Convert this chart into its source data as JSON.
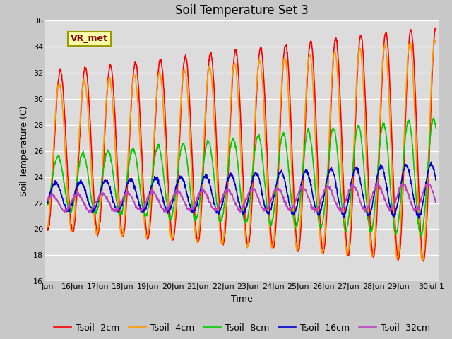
{
  "title": "Soil Temperature Set 3",
  "xlabel": "Time",
  "ylabel": "Soil Temperature (C)",
  "ylim": [
    16,
    36
  ],
  "background_color": "#c8c8c8",
  "plot_bg_color": "#dcdcdc",
  "series": [
    {
      "label": "Tsoil -2cm",
      "color": "#ff0000",
      "amp_start": 6.0,
      "amp_end": 9.0,
      "mean": 26.0,
      "phase": 0.0,
      "linewidth": 1.2
    },
    {
      "label": "Tsoil -4cm",
      "color": "#ff9900",
      "amp_start": 5.5,
      "amp_end": 8.5,
      "mean": 25.5,
      "phase": 0.25,
      "linewidth": 1.2
    },
    {
      "label": "Tsoil -8cm",
      "color": "#00cc00",
      "amp_start": 2.0,
      "amp_end": 4.5,
      "mean": 23.5,
      "phase": 0.6,
      "linewidth": 1.2
    },
    {
      "label": "Tsoil -16cm",
      "color": "#0000cc",
      "amp_start": 1.0,
      "amp_end": 2.0,
      "mean": 22.5,
      "phase": 1.2,
      "linewidth": 1.2
    },
    {
      "label": "Tsoil -32cm",
      "color": "#bb44bb",
      "amp_start": 0.6,
      "amp_end": 1.0,
      "mean": 22.0,
      "phase": 2.0,
      "linewidth": 1.2
    }
  ],
  "xtick_positions": [
    0,
    1,
    2,
    3,
    4,
    5,
    6,
    7,
    8,
    9,
    10,
    11,
    12,
    13,
    14,
    15,
    15.5
  ],
  "xtick_labels": [
    "Jun",
    "16Jun",
    "17Jun",
    "18Jun",
    "19Jun",
    "20Jun",
    "21Jun",
    "22Jun",
    "23Jun",
    "24Jun",
    "25Jun",
    "26Jun",
    "27Jun",
    "28Jun",
    "29Jun",
    "30",
    "Jul 1"
  ],
  "ytick_positions": [
    16,
    18,
    20,
    22,
    24,
    26,
    28,
    30,
    32,
    34,
    36
  ],
  "vr_met_label": "VR_met",
  "title_fontsize": 12,
  "axis_label_fontsize": 9,
  "tick_fontsize": 8,
  "legend_fontsize": 9
}
